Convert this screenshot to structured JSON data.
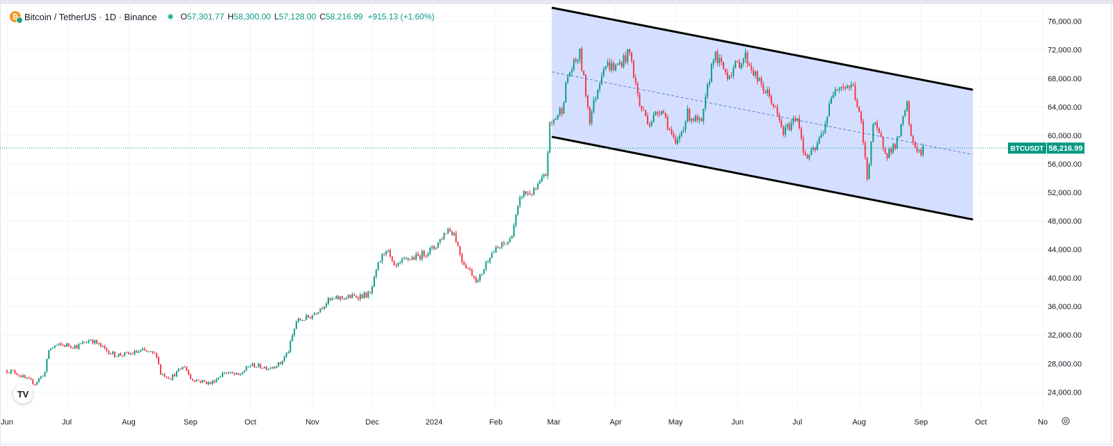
{
  "header": {
    "symbol_title": "Bitcoin / TetherUS · 1D · Binance",
    "open_label": "O",
    "open": "57,301.77",
    "high_label": "H",
    "high": "58,300.00",
    "low_label": "L",
    "low": "57,128.00",
    "close_label": "C",
    "close": "58,216.99",
    "change": "+915.13 (+1.60%)"
  },
  "icons": {
    "coin": "bitcoin-icon",
    "status": "live-status-icon",
    "logo": "tradingview-logo-icon",
    "settings": "gear-icon"
  },
  "logo_text": "TV",
  "colors": {
    "up": "#089981",
    "down": "#f23645",
    "channel_fill": "#cfdcff",
    "channel_line": "#000000",
    "midline": "#5b7ad1",
    "price_label": "#089981"
  },
  "chart_data": {
    "type": "candlestick",
    "title": "Bitcoin / TetherUS · 1D · Binance",
    "ylim": [
      21500,
      78500
    ],
    "y_ticks": [
      24000,
      28000,
      32000,
      36000,
      40000,
      44000,
      48000,
      52000,
      56000,
      60000,
      64000,
      68000,
      72000,
      76000
    ],
    "y_tick_labels": [
      "24,000.00",
      "28,000.00",
      "32,000.00",
      "36,000.00",
      "40,000.00",
      "44,000.00",
      "48,000.00",
      "52,000.00",
      "56,000.00",
      "60,000.00",
      "64,000.00",
      "68,000.00",
      "72,000.00",
      "76,000.00"
    ],
    "x_labels": [
      "Jun",
      "Jul",
      "Aug",
      "Sep",
      "Oct",
      "Nov",
      "Dec",
      "2024",
      "Feb",
      "Mar",
      "Apr",
      "May",
      "Jun",
      "Jul",
      "Aug",
      "Sep",
      "Oct",
      "No"
    ],
    "x_label_dates": [
      "2023-06-01",
      "2023-07-01",
      "2023-08-01",
      "2023-09-01",
      "2023-10-01",
      "2023-11-01",
      "2023-12-01",
      "2024-01-01",
      "2024-02-01",
      "2024-03-01",
      "2024-04-01",
      "2024-05-01",
      "2024-06-01",
      "2024-07-01",
      "2024-08-01",
      "2024-09-01",
      "2024-10-01",
      "2024-11-01"
    ],
    "x_start": "2023-06-01",
    "x_end": "2024-11-17",
    "current_price": 58216.99,
    "current_price_label": "58,216.99",
    "current_symbol": "BTCUSDT",
    "close_trajectory": [
      [
        "2023-06-01",
        27000
      ],
      [
        "2023-06-05",
        26800
      ],
      [
        "2023-06-10",
        25900
      ],
      [
        "2023-06-15",
        25200
      ],
      [
        "2023-06-20",
        26800
      ],
      [
        "2023-06-22",
        29900
      ],
      [
        "2023-06-25",
        30500
      ],
      [
        "2023-07-01",
        30600
      ],
      [
        "2023-07-06",
        30400
      ],
      [
        "2023-07-13",
        31400
      ],
      [
        "2023-07-20",
        30000
      ],
      [
        "2023-07-25",
        29200
      ],
      [
        "2023-08-01",
        29300
      ],
      [
        "2023-08-08",
        29800
      ],
      [
        "2023-08-15",
        29200
      ],
      [
        "2023-08-17",
        26600
      ],
      [
        "2023-08-22",
        26000
      ],
      [
        "2023-08-29",
        27700
      ],
      [
        "2023-09-01",
        25900
      ],
      [
        "2023-09-11",
        25200
      ],
      [
        "2023-09-18",
        26800
      ],
      [
        "2023-09-25",
        26300
      ],
      [
        "2023-10-01",
        27800
      ],
      [
        "2023-10-10",
        27400
      ],
      [
        "2023-10-16",
        28000
      ],
      [
        "2023-10-20",
        29800
      ],
      [
        "2023-10-24",
        33900
      ],
      [
        "2023-10-31",
        34600
      ],
      [
        "2023-11-09",
        36800
      ],
      [
        "2023-11-15",
        37200
      ],
      [
        "2023-11-22",
        37400
      ],
      [
        "2023-11-30",
        37700
      ],
      [
        "2023-12-04",
        41800
      ],
      [
        "2023-12-08",
        44200
      ],
      [
        "2023-12-12",
        41300
      ],
      [
        "2023-12-18",
        42600
      ],
      [
        "2023-12-24",
        43000
      ],
      [
        "2024-01-01",
        44200
      ],
      [
        "2024-01-08",
        46900
      ],
      [
        "2024-01-11",
        46300
      ],
      [
        "2024-01-15",
        42500
      ],
      [
        "2024-01-23",
        39500
      ],
      [
        "2024-01-29",
        43300
      ],
      [
        "2024-02-08",
        45300
      ],
      [
        "2024-02-14",
        51800
      ],
      [
        "2024-02-20",
        52000
      ],
      [
        "2024-02-26",
        54500
      ],
      [
        "2024-02-28",
        61300
      ],
      [
        "2024-03-05",
        63800
      ],
      [
        "2024-03-08",
        68300
      ],
      [
        "2024-03-14",
        71400
      ],
      [
        "2024-03-19",
        62300
      ],
      [
        "2024-03-26",
        70000
      ],
      [
        "2024-04-01",
        69500
      ],
      [
        "2024-04-08",
        71600
      ],
      [
        "2024-04-13",
        64200
      ],
      [
        "2024-04-18",
        61800
      ],
      [
        "2024-04-24",
        64000
      ],
      [
        "2024-05-01",
        58400
      ],
      [
        "2024-05-07",
        63000
      ],
      [
        "2024-05-14",
        61500
      ],
      [
        "2024-05-20",
        71400
      ],
      [
        "2024-05-27",
        68500
      ],
      [
        "2024-06-05",
        71100
      ],
      [
        "2024-06-12",
        67300
      ],
      [
        "2024-06-18",
        65000
      ],
      [
        "2024-06-24",
        60300
      ],
      [
        "2024-07-01",
        62800
      ],
      [
        "2024-07-05",
        56700
      ],
      [
        "2024-07-10",
        58000
      ],
      [
        "2024-07-14",
        60800
      ],
      [
        "2024-07-20",
        67100
      ],
      [
        "2024-07-29",
        66800
      ],
      [
        "2024-08-02",
        61500
      ],
      [
        "2024-08-05",
        54000
      ],
      [
        "2024-08-08",
        61700
      ],
      [
        "2024-08-15",
        57500
      ],
      [
        "2024-08-20",
        59000
      ],
      [
        "2024-08-25",
        64200
      ],
      [
        "2024-08-27",
        59400
      ],
      [
        "2024-09-01",
        57300
      ],
      [
        "2024-09-02",
        58217
      ]
    ],
    "annotations": [
      {
        "type": "parallel_channel",
        "upper": [
          [
            "2024-02-29",
            77900
          ],
          [
            "2024-09-27",
            66400
          ]
        ],
        "lower": [
          [
            "2024-02-29",
            59800
          ],
          [
            "2024-09-27",
            48200
          ]
        ],
        "midline": [
          [
            "2024-02-29",
            68900
          ],
          [
            "2024-09-27",
            57300
          ]
        ]
      }
    ]
  }
}
